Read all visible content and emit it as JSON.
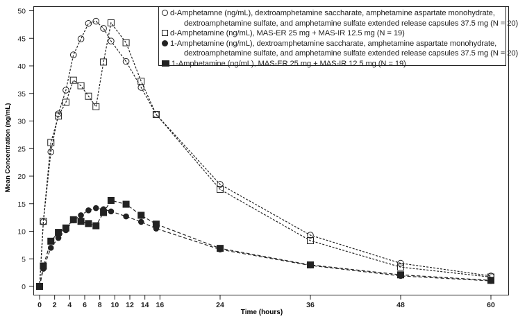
{
  "chart_data": {
    "type": "line",
    "xlabel": "Time (hours)",
    "ylabel": "Mean Concentration (ng/mL)",
    "xlim": [
      0,
      60
    ],
    "ylim": [
      0,
      50
    ],
    "xticks": [
      0,
      2,
      4,
      6,
      8,
      10,
      12,
      14,
      16,
      24,
      36,
      48,
      60
    ],
    "yticks": [
      0,
      5,
      10,
      15,
      20,
      25,
      30,
      35,
      40,
      45,
      50
    ],
    "grid": false,
    "legend_position": "top-right",
    "series": [
      {
        "name": "d-Amphetamne (ng/mL), dextroamphetamine saccharate, amphetamine aspartate monohydrate,",
        "name_cont": "dextroamphetamine sulfate, and amphetamine sulfate extended release capsules 37.5 mg (N = 20)",
        "marker": "open-circle",
        "x": [
          0,
          0.5,
          1.5,
          2.5,
          3.5,
          4.5,
          5.5,
          6.5,
          7.5,
          8.5,
          9.5,
          11.5,
          13.5,
          15.5,
          24,
          36,
          48,
          60
        ],
        "y": [
          0,
          11.7,
          24.4,
          31.3,
          35.6,
          42.0,
          44.9,
          47.7,
          48.1,
          46.8,
          44.5,
          40.8,
          36.1,
          31.2,
          18.5,
          9.3,
          4.2,
          1.9
        ]
      },
      {
        "name": "d-Amphetamine (ng/mL), MAS-ER 25 mg + MAS-IR 12.5 mg (N = 19)",
        "marker": "open-square",
        "x": [
          0,
          0.5,
          1.5,
          2.5,
          3.5,
          4.5,
          5.5,
          6.5,
          7.5,
          8.5,
          9.5,
          11.5,
          13.5,
          15.5,
          24,
          36,
          48,
          60
        ],
        "y": [
          0,
          11.8,
          26.1,
          30.9,
          33.4,
          37.4,
          36.4,
          34.5,
          32.6,
          40.7,
          47.8,
          44.2,
          37.2,
          31.2,
          17.6,
          8.3,
          3.5,
          1.7
        ]
      },
      {
        "name": "1-Amphetamine (ng/mL), dextroamphetamine saccharate, amphetamine aspartate monohydrate,",
        "name_cont": "dextroamphetamine sulfate, and amphetamine sulfate extended release capsules 37.5 mg (N = 20)",
        "marker": "filled-circle",
        "x": [
          0,
          0.5,
          1.5,
          2.5,
          3.5,
          4.5,
          5.5,
          6.5,
          7.5,
          8.5,
          9.5,
          11.5,
          13.5,
          15.5,
          24,
          36,
          48,
          60
        ],
        "y": [
          0,
          3.2,
          7.0,
          8.8,
          10.2,
          12.0,
          12.9,
          13.8,
          14.2,
          14.0,
          13.6,
          12.7,
          11.7,
          10.5,
          6.7,
          3.8,
          1.9,
          1.0
        ]
      },
      {
        "name": "1-Amphetamine (ng/mL), MAS-ER 25 mg + MAS-IR 12.5 mg (N = 19)",
        "marker": "filled-square",
        "x": [
          0,
          0.5,
          1.5,
          2.5,
          3.5,
          4.5,
          5.5,
          6.5,
          7.5,
          8.5,
          9.5,
          11.5,
          13.5,
          15.5,
          24,
          36,
          48,
          60
        ],
        "y": [
          0,
          3.7,
          8.2,
          9.8,
          10.6,
          12.1,
          11.8,
          11.4,
          11.0,
          13.4,
          15.6,
          14.9,
          12.9,
          11.3,
          6.9,
          3.9,
          2.1,
          1.1
        ]
      }
    ]
  }
}
